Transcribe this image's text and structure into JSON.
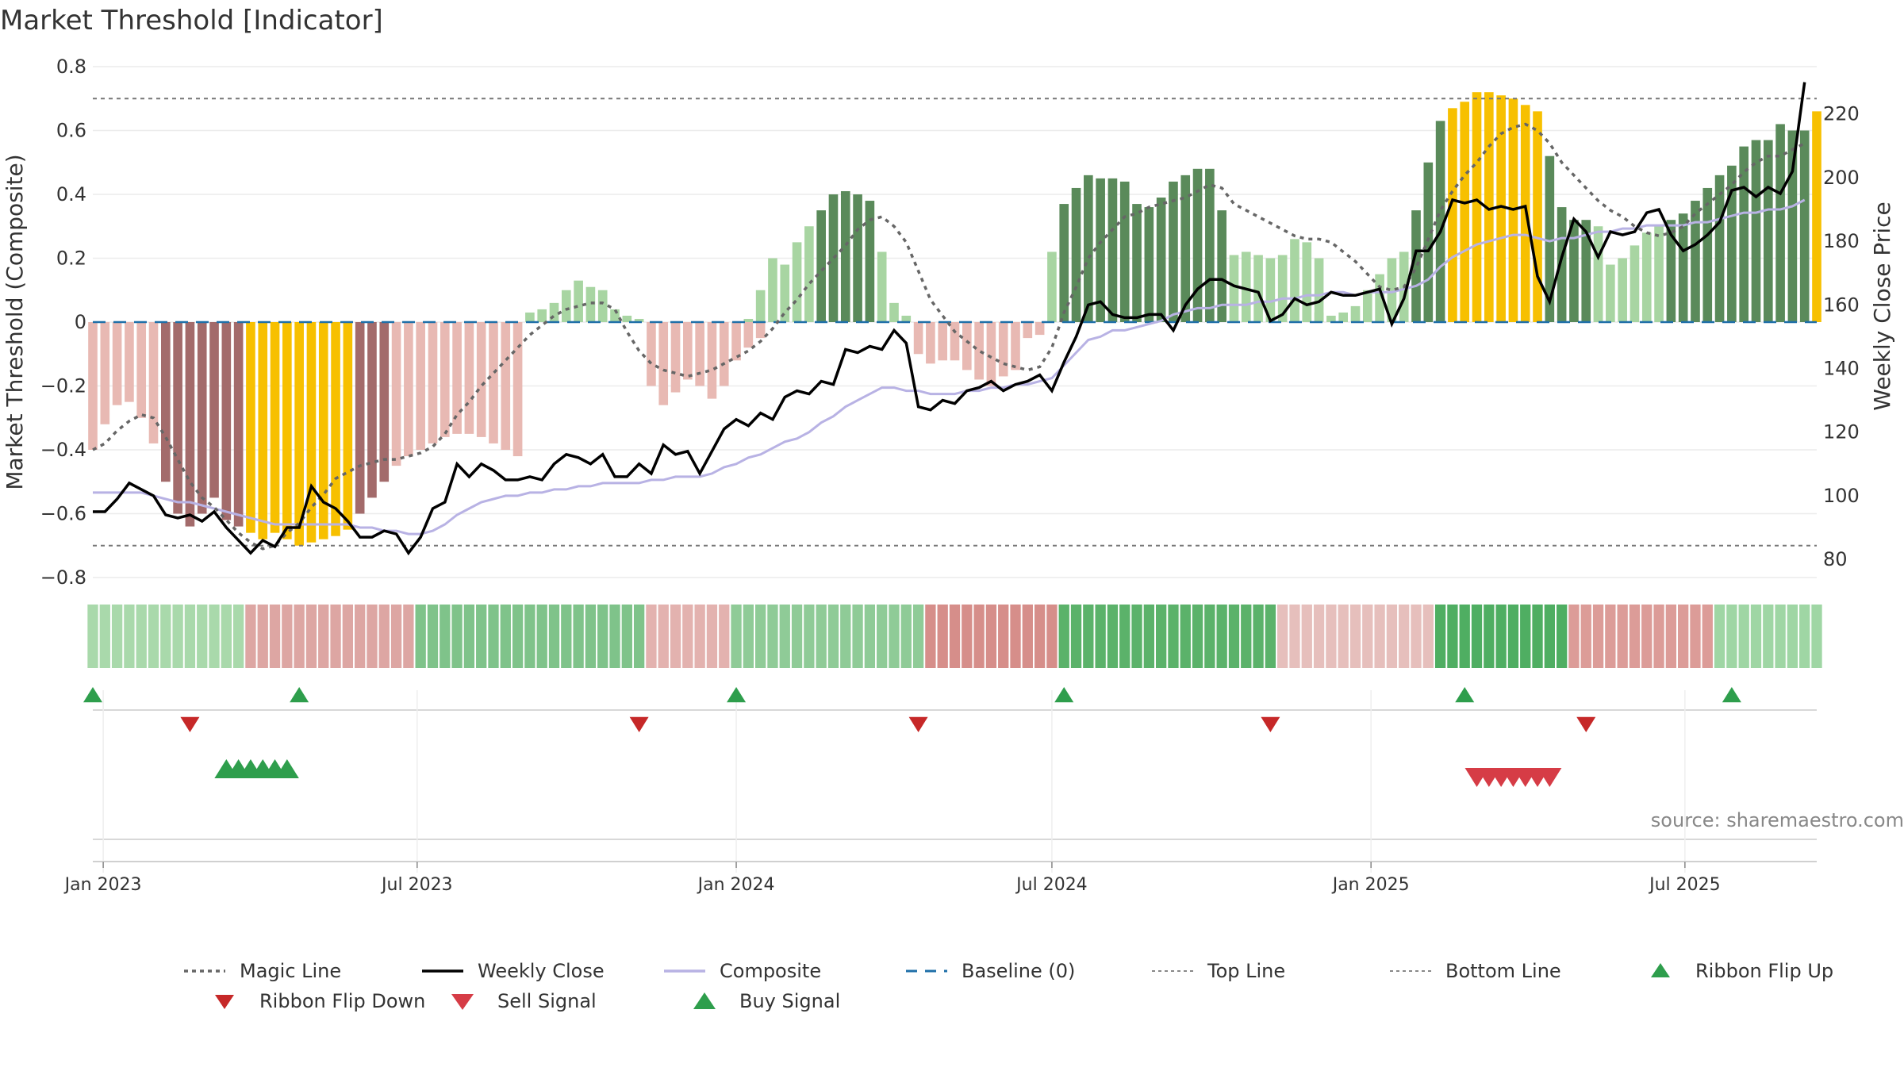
{
  "header": {
    "title": "Market Threshold [Indicator]"
  },
  "source_text": "source: sharemaestro.com",
  "colors": {
    "bull_dark": "#5a8a5a",
    "bull_light": "#a8d5a2",
    "bear_dark": "#a36b6b",
    "bear_light": "#e8b9b3",
    "extreme": "#f7c000",
    "close_line": "#000000",
    "composite_line": "#b8b2e4",
    "magic_line": "#666666",
    "baseline": "#1f6fa8",
    "buy": "#2e9e4c",
    "sell": "#d63c46",
    "flip_down": "#c62828"
  },
  "legend": [
    {
      "key": "magic",
      "label": "Magic Line"
    },
    {
      "key": "close",
      "label": "Weekly Close"
    },
    {
      "key": "composite",
      "label": "Composite"
    },
    {
      "key": "baseline",
      "label": "Baseline (0)"
    },
    {
      "key": "top",
      "label": "Top Line"
    },
    {
      "key": "bottom",
      "label": "Bottom Line"
    },
    {
      "key": "flip_up",
      "label": "Ribbon Flip Up"
    },
    {
      "key": "flip_down",
      "label": "Ribbon Flip Down"
    },
    {
      "key": "sell",
      "label": "Sell Signal"
    },
    {
      "key": "buy",
      "label": "Buy Signal"
    }
  ],
  "chart_data": {
    "type": "bar",
    "xlabel": "",
    "ylabel": "Market Threshold (Composite)",
    "y2label": "Weekly Close Price",
    "ylim": [
      -0.8,
      0.8
    ],
    "y_ticks": [
      "0.8",
      "0.6",
      "0.4",
      "0.2",
      "0",
      "−0.2",
      "−0.4",
      "−0.6",
      "−0.8"
    ],
    "y_tick_values": [
      0.8,
      0.6,
      0.4,
      0.2,
      0,
      -0.2,
      -0.4,
      -0.6,
      -0.8
    ],
    "y2lim": [
      74.3,
      234.9
    ],
    "y2_ticks": [
      "80",
      "100",
      "120",
      "140",
      "160",
      "180",
      "200",
      "220"
    ],
    "y2_tick_values": [
      80,
      100,
      120,
      140,
      160,
      180,
      200,
      220
    ],
    "x_start_date": "2022-12-26",
    "x_end_date": "2025-09-15",
    "x_ticks": [
      "Jan 2023",
      "Jul 2023",
      "Jan 2024",
      "Jul 2024",
      "Jan 2025",
      "Jul 2025"
    ],
    "x_tick_dates": [
      "2023-01-01",
      "2023-07-01",
      "2024-01-01",
      "2024-07-01",
      "2025-01-01",
      "2025-07-01"
    ],
    "top_line": 0.7,
    "bottom_line": -0.7,
    "composite_bars": [
      {
        "start": "2022-12-26",
        "end": "2023-01-16",
        "values": [
          -0.4,
          -0.32,
          -0.26,
          -0.25
        ]
      },
      {
        "start": "2023-01-23",
        "end": "2023-04-03",
        "values": [
          -0.3,
          -0.38,
          -0.5,
          -0.6,
          -0.64,
          -0.6,
          -0.55,
          -0.62,
          -0.64,
          -0.66,
          -0.68
        ]
      },
      {
        "start": "2023-04-10",
        "end": "2023-08-28",
        "values": [
          -0.66,
          -0.68,
          -0.7,
          -0.69,
          -0.68,
          -0.67,
          -0.65,
          -0.6,
          -0.55,
          -0.5,
          -0.45,
          -0.42,
          -0.4,
          -0.38,
          -0.36,
          -0.35,
          -0.35,
          -0.36,
          -0.38,
          -0.4,
          -0.42
        ]
      },
      {
        "start": "2023-09-04",
        "end": "2023-11-06",
        "values": [
          0.03,
          0.04,
          0.06,
          0.1,
          0.13,
          0.11,
          0.1,
          0.04,
          0.02,
          0.01
        ]
      },
      {
        "start": "2023-11-13",
        "end": "2024-01-01",
        "values": [
          -0.2,
          -0.26,
          -0.22,
          -0.18,
          -0.2,
          -0.24,
          -0.2,
          -0.12,
          -0.08,
          -0.05
        ]
      },
      {
        "start": "2024-01-08",
        "end": "2024-04-08",
        "values": [
          0.01,
          0.1,
          0.2,
          0.18,
          0.25,
          0.3,
          0.35,
          0.4,
          0.41,
          0.4,
          0.38,
          0.22,
          0.06,
          0.02
        ]
      },
      {
        "start": "2024-04-15",
        "end": "2024-06-24",
        "values": [
          -0.1,
          -0.13,
          -0.12,
          -0.12,
          -0.15,
          -0.18,
          -0.2,
          -0.17,
          -0.15,
          -0.05,
          -0.04
        ]
      },
      {
        "start": "2024-07-01",
        "end": "2024-11-11",
        "values": [
          0.22,
          0.37,
          0.42,
          0.46,
          0.45,
          0.45,
          0.44,
          0.37,
          0.36,
          0.39,
          0.44,
          0.46,
          0.48,
          0.48,
          0.35,
          0.21,
          0.22,
          0.21,
          0.2,
          0.21,
          0.26,
          0.25,
          0.2
        ]
      },
      {
        "start": "2024-11-18",
        "end": "2025-01-20",
        "values": [
          0.08,
          0.05,
          0.03,
          0.02,
          0.03,
          0.05,
          0.1,
          0.15,
          0.2,
          0.22
        ]
      },
      {
        "start": "2025-01-27",
        "end": "2025-05-05",
        "values": [
          0.35,
          0.5,
          0.63,
          0.67,
          0.69,
          0.72,
          0.72,
          0.71,
          0.7,
          0.68,
          0.66,
          0.52,
          0.36,
          0.32,
          0.32,
          0.3
        ]
      },
      {
        "start": "2025-05-12",
        "end": "2025-09-15",
        "values": [
          0.2,
          0.18,
          0.2,
          0.24,
          0.28,
          0.3,
          0.32,
          0.34,
          0.38,
          0.42,
          0.46,
          0.49,
          0.55,
          0.57,
          0.57,
          0.62,
          0.6,
          0.6,
          0.66
        ]
      }
    ],
    "series": [
      {
        "name": "Weekly Close",
        "axis": "right",
        "start": "2022-12-26",
        "values": [
          95,
          95,
          99,
          104,
          102,
          100,
          94,
          93,
          94,
          92,
          95,
          90,
          86,
          82,
          86,
          84,
          90,
          90,
          103,
          98,
          96,
          92,
          87,
          87,
          89,
          88,
          82,
          87,
          96,
          98,
          110,
          106,
          110,
          108,
          105,
          105,
          106,
          105,
          110,
          113,
          112,
          110,
          113,
          106,
          106,
          110,
          107,
          116,
          113,
          114,
          107,
          114,
          121,
          124,
          122,
          126,
          124,
          131,
          133,
          132,
          136,
          135,
          146,
          145,
          147,
          146,
          152,
          148,
          128,
          127,
          130,
          129,
          133,
          134,
          136,
          133,
          135,
          136,
          138,
          133,
          142,
          150,
          160,
          161,
          157,
          156,
          156,
          157,
          157,
          152,
          160,
          165,
          168,
          168,
          166,
          165,
          164,
          155,
          157,
          162,
          160,
          161,
          164,
          163,
          163,
          164,
          165,
          154,
          162,
          177,
          177,
          183,
          193,
          192,
          193,
          190,
          191,
          190,
          191,
          169,
          161,
          175,
          187,
          183,
          175,
          183,
          182,
          183,
          189,
          190,
          182,
          177,
          179,
          182,
          186,
          196,
          197,
          194,
          197,
          195,
          202,
          230
        ]
      },
      {
        "name": "Composite",
        "axis": "right",
        "start": "2022-12-26",
        "values": [
          101,
          101,
          101,
          101,
          101,
          100,
          99,
          98,
          98,
          97,
          96,
          95,
          94,
          93,
          92,
          91,
          91,
          91,
          91,
          91,
          91,
          91,
          90,
          90,
          89,
          89,
          88,
          88,
          89,
          91,
          94,
          96,
          98,
          99,
          100,
          100,
          101,
          101,
          102,
          102,
          103,
          103,
          104,
          104,
          104,
          104,
          105,
          105,
          106,
          106,
          106,
          107,
          109,
          110,
          112,
          113,
          115,
          117,
          118,
          120,
          123,
          125,
          128,
          130,
          132,
          134,
          134,
          133,
          133,
          132,
          132,
          132,
          133,
          133,
          134,
          134,
          135,
          135,
          136,
          137,
          141,
          145,
          149,
          150,
          152,
          152,
          153,
          154,
          155,
          157,
          158,
          159,
          159,
          160,
          160,
          160,
          161,
          161,
          162,
          162,
          163,
          163,
          164,
          164,
          163,
          164,
          164,
          164,
          165,
          166,
          168,
          172,
          175,
          177,
          179,
          180,
          181,
          182,
          182,
          181,
          180,
          181,
          181,
          182,
          183,
          183,
          184,
          184,
          185,
          185,
          185,
          185,
          186,
          186,
          187,
          188,
          189,
          189,
          190,
          190,
          191,
          193
        ]
      },
      {
        "name": "Magic Line",
        "axis": "left",
        "start": "2022-12-26",
        "values": [
          -0.4,
          -0.38,
          -0.34,
          -0.31,
          -0.29,
          -0.3,
          -0.36,
          -0.43,
          -0.5,
          -0.55,
          -0.58,
          -0.62,
          -0.66,
          -0.69,
          -0.71,
          -0.7,
          -0.66,
          -0.63,
          -0.58,
          -0.54,
          -0.49,
          -0.47,
          -0.45,
          -0.44,
          -0.43,
          -0.43,
          -0.42,
          -0.41,
          -0.39,
          -0.35,
          -0.29,
          -0.25,
          -0.2,
          -0.16,
          -0.12,
          -0.08,
          -0.04,
          -0.01,
          0.02,
          0.04,
          0.05,
          0.06,
          0.06,
          0.04,
          -0.03,
          -0.09,
          -0.13,
          -0.15,
          -0.16,
          -0.17,
          -0.16,
          -0.15,
          -0.13,
          -0.11,
          -0.09,
          -0.06,
          -0.02,
          0.03,
          0.07,
          0.12,
          0.16,
          0.2,
          0.24,
          0.29,
          0.32,
          0.33,
          0.3,
          0.25,
          0.16,
          0.07,
          0.02,
          -0.03,
          -0.06,
          -0.09,
          -0.11,
          -0.13,
          -0.14,
          -0.15,
          -0.14,
          -0.08,
          0.03,
          0.11,
          0.2,
          0.25,
          0.29,
          0.33,
          0.34,
          0.36,
          0.37,
          0.38,
          0.39,
          0.41,
          0.43,
          0.42,
          0.37,
          0.35,
          0.33,
          0.31,
          0.29,
          0.27,
          0.26,
          0.26,
          0.25,
          0.22,
          0.19,
          0.15,
          0.11,
          0.1,
          0.11,
          0.17,
          0.26,
          0.35,
          0.41,
          0.46,
          0.5,
          0.55,
          0.59,
          0.61,
          0.62,
          0.6,
          0.56,
          0.5,
          0.46,
          0.42,
          0.38,
          0.35,
          0.33,
          0.3,
          0.28,
          0.27,
          0.28,
          0.3,
          0.34,
          0.37,
          0.4,
          0.43,
          0.47,
          0.5,
          0.52,
          0.52,
          0.54,
          0.56
        ]
      }
    ],
    "ribbon": [
      {
        "start": "2022-12-26",
        "end": "2023-03-27",
        "color": "#a9d9ab"
      },
      {
        "start": "2023-03-27",
        "end": "2023-07-03",
        "color": "#dda6a3"
      },
      {
        "start": "2023-07-03",
        "end": "2023-11-13",
        "color": "#7fc38a"
      },
      {
        "start": "2023-11-13",
        "end": "2024-01-01",
        "color": "#e3b2af"
      },
      {
        "start": "2024-01-01",
        "end": "2024-04-22",
        "color": "#8fcb97"
      },
      {
        "start": "2024-04-22",
        "end": "2024-07-08",
        "color": "#d68e8a"
      },
      {
        "start": "2024-07-08",
        "end": "2024-11-11",
        "color": "#5bb26a"
      },
      {
        "start": "2024-11-11",
        "end": "2025-02-10",
        "color": "#e6bfbc"
      },
      {
        "start": "2025-02-10",
        "end": "2025-04-28",
        "color": "#4fae62"
      },
      {
        "start": "2025-04-28",
        "end": "2025-07-21",
        "color": "#dc9c98"
      },
      {
        "start": "2025-07-21",
        "end": "2025-09-22",
        "color": "#9fd6a4"
      }
    ],
    "ribbon_flip_up": [
      "2022-12-26",
      "2023-04-24",
      "2024-01-01",
      "2024-07-08",
      "2025-02-24",
      "2025-07-28"
    ],
    "ribbon_flip_down": [
      "2023-02-20",
      "2023-11-06",
      "2024-04-15",
      "2024-11-04",
      "2025-05-05"
    ],
    "buy_signals": [
      "2023-03-13",
      "2023-03-20",
      "2023-03-27",
      "2023-04-03",
      "2023-04-10",
      "2023-04-17"
    ],
    "sell_signals": [
      "2025-03-03",
      "2025-03-10",
      "2025-03-17",
      "2025-03-24",
      "2025-03-31",
      "2025-04-07",
      "2025-04-14"
    ]
  }
}
